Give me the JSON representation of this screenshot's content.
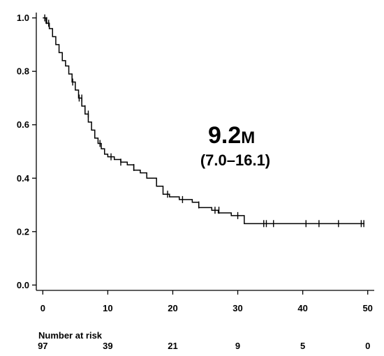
{
  "chart_data": {
    "type": "line",
    "title": "",
    "xlabel": "",
    "ylabel": "",
    "xlim": [
      -1,
      51
    ],
    "ylim": [
      -0.02,
      1.02
    ],
    "x_ticks": [
      0,
      10,
      20,
      30,
      40,
      50
    ],
    "x_tick_labels": [
      "0",
      "10",
      "20",
      "30",
      "40",
      "50"
    ],
    "y_ticks": [
      0.0,
      0.2,
      0.4,
      0.6,
      0.8,
      1.0
    ],
    "y_tick_labels": [
      "0.0",
      "0.2",
      "0.4",
      "0.6",
      "0.8",
      "1.0"
    ],
    "grid": false,
    "series": [
      {
        "x": [
          0,
          0.5,
          1.0,
          1.5,
          2.0,
          2.5,
          3.0,
          3.5,
          4.0,
          4.5,
          5.0,
          5.5,
          6.0,
          6.5,
          7.0,
          7.5,
          8.0,
          8.5,
          9.0,
          9.5,
          10.0,
          11.0,
          12.0,
          13.0,
          14.0,
          15.0,
          16.0,
          17.5,
          18.5,
          19.5,
          21.0,
          23.0,
          24.0,
          26.0,
          27.0,
          29.0,
          31.0,
          49.5
        ],
        "y": [
          1.0,
          0.98,
          0.96,
          0.93,
          0.9,
          0.87,
          0.84,
          0.82,
          0.79,
          0.76,
          0.73,
          0.7,
          0.67,
          0.64,
          0.61,
          0.58,
          0.55,
          0.53,
          0.51,
          0.49,
          0.48,
          0.47,
          0.46,
          0.45,
          0.43,
          0.42,
          0.4,
          0.37,
          0.34,
          0.33,
          0.32,
          0.31,
          0.29,
          0.28,
          0.27,
          0.26,
          0.23,
          0.23
        ],
        "censored": [
          [
            0.3,
            1.0
          ],
          [
            0.6,
            0.99
          ],
          [
            0.9,
            0.98
          ],
          [
            4.6,
            0.76
          ],
          [
            5.6,
            0.7
          ],
          [
            6.0,
            0.7
          ],
          [
            6.5,
            0.66
          ],
          [
            7.0,
            0.64
          ],
          [
            8.8,
            0.53
          ],
          [
            10.5,
            0.48
          ],
          [
            12.0,
            0.46
          ],
          [
            14.0,
            0.44
          ],
          [
            19.2,
            0.34
          ],
          [
            21.5,
            0.32
          ],
          [
            24.0,
            0.3
          ],
          [
            26.5,
            0.28
          ],
          [
            27.1,
            0.28
          ],
          [
            30.0,
            0.26
          ],
          [
            34.0,
            0.23
          ],
          [
            34.4,
            0.23
          ],
          [
            35.5,
            0.23
          ],
          [
            40.5,
            0.23
          ],
          [
            42.5,
            0.23
          ],
          [
            45.5,
            0.23
          ],
          [
            49.0,
            0.23
          ],
          [
            49.4,
            0.23
          ]
        ]
      }
    ],
    "annotations": {
      "median_value": "9.2",
      "median_unit": "M",
      "median_ci": "(7.0–16.1)"
    },
    "risk_table": {
      "title": "Number at risk",
      "times": [
        0,
        10,
        20,
        30,
        40,
        50
      ],
      "counts": [
        "97",
        "39",
        "21",
        "9",
        "5",
        "0"
      ]
    }
  }
}
